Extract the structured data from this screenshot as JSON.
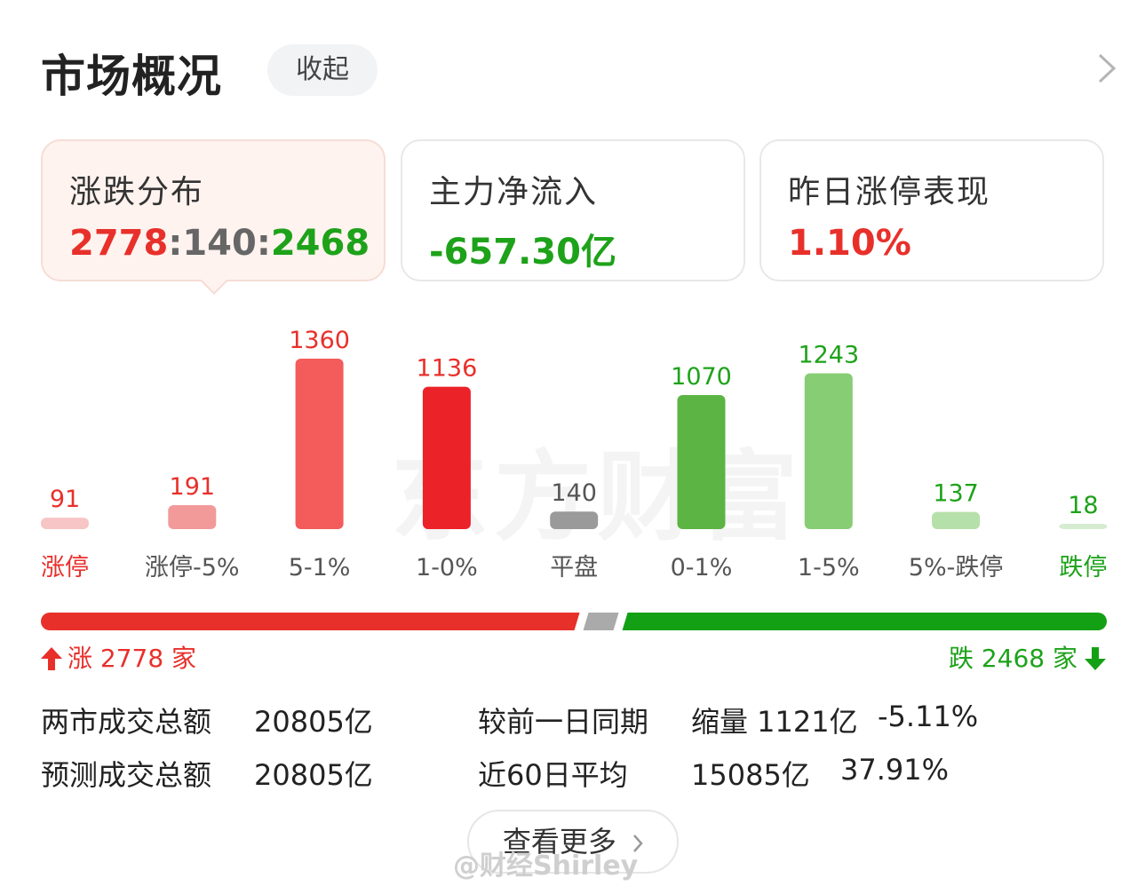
{
  "header": {
    "title": "市场概况",
    "collapse_label": "收起",
    "chevron_icon": "chevron-right-icon"
  },
  "cards": [
    {
      "label": "涨跌分布",
      "value_up": "2778",
      "sep1": ":",
      "value_flat": "140",
      "sep2": ":",
      "value_down": "2468"
    },
    {
      "label": "主力净流入",
      "value": "-657.30亿"
    },
    {
      "label": "昨日涨停表现",
      "value": "1.10%"
    }
  ],
  "chart_data": {
    "type": "bar",
    "categories": [
      "涨停",
      "涨停-5%",
      "5-1%",
      "1-0%",
      "平盘",
      "0-1%",
      "1-5%",
      "5%-跌停",
      "跌停"
    ],
    "values": [
      91,
      191,
      1360,
      1136,
      140,
      1070,
      1243,
      137,
      18
    ],
    "ylim": [
      0,
      1360
    ],
    "colors": [
      "#f7c5c5",
      "#f29a9a",
      "#f45b5b",
      "#ec2229",
      "#9a9a9a",
      "#5bb443",
      "#86cd73",
      "#b6e0a9",
      "#d5ecd0"
    ],
    "value_label_colors": [
      "#e8302b",
      "#e8302b",
      "#e8302b",
      "#e8302b",
      "#555555",
      "#1ea21a",
      "#1ea21a",
      "#1ea21a",
      "#1ea21a"
    ],
    "category_label_colors": [
      "#e8302b",
      "#555555",
      "#555555",
      "#555555",
      "#555555",
      "#555555",
      "#555555",
      "#555555",
      "#1ea21a"
    ]
  },
  "watermark": "东方财富",
  "summary": {
    "up_count": 2778,
    "flat_count": 140,
    "down_count": 2468,
    "up_label": "涨 2778 家",
    "down_label": "跌 2468 家",
    "up_color": "#e8302b",
    "flat_color": "#aaaaaa",
    "down_color": "#14a014"
  },
  "stats": {
    "total_label": "两市成交总额",
    "total_value": "20805亿",
    "forecast_label": "预测成交总额",
    "forecast_value": "20805亿",
    "compare_label": "较前一日同期",
    "compare_value": "缩量 1121亿",
    "compare_pct": "-5.11%",
    "avg_label": "近60日平均",
    "avg_value": "15085亿",
    "avg_pct": "37.91%"
  },
  "more_button": "查看更多",
  "weibo_watermark": "@财经Shirley"
}
